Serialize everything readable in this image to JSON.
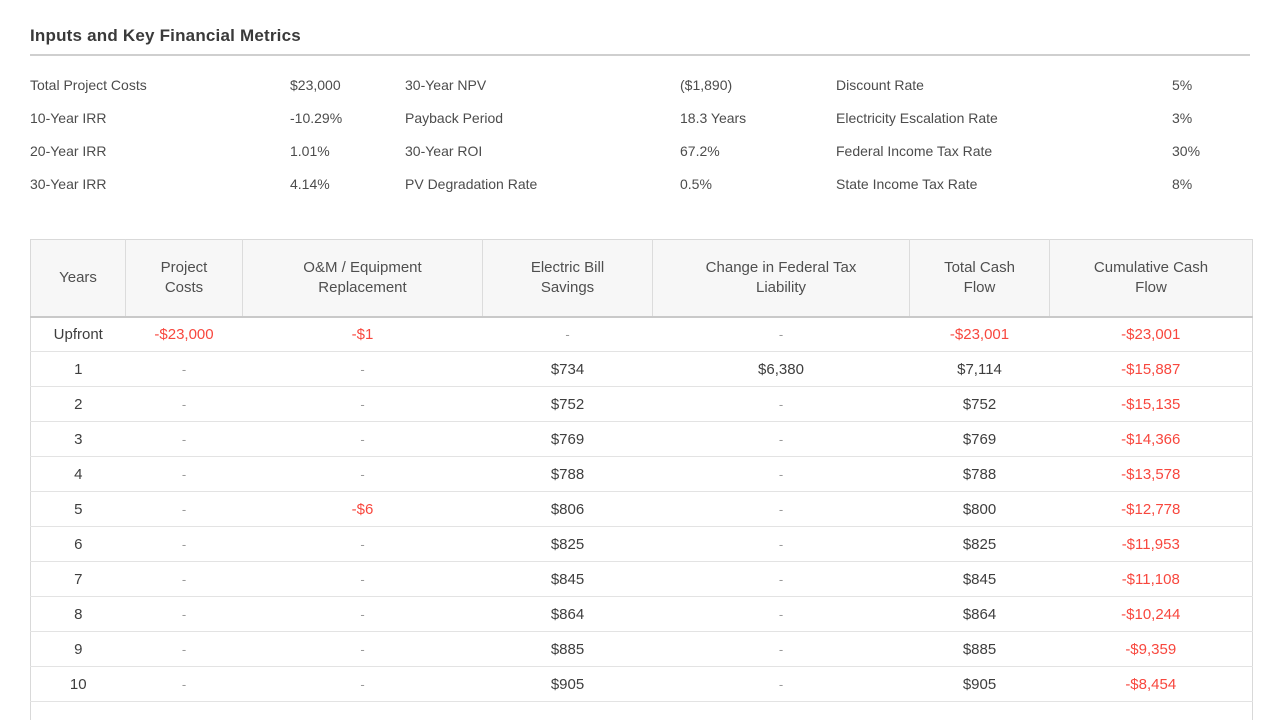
{
  "page": {
    "title": "Inputs and Key Financial Metrics"
  },
  "colors": {
    "negative_value": "#f8473e",
    "table_header_bg": "#f7f7f7"
  },
  "metrics": {
    "rows": [
      [
        {
          "label": "Total Project Costs",
          "value": "$23,000"
        },
        {
          "label": "30-Year NPV",
          "value": "($1,890)"
        },
        {
          "label": "Discount Rate",
          "value": "5%"
        }
      ],
      [
        {
          "label": "10-Year IRR",
          "value": "-10.29%"
        },
        {
          "label": "Payback Period",
          "value": "18.3 Years"
        },
        {
          "label": "Electricity Escalation Rate",
          "value": "3%"
        }
      ],
      [
        {
          "label": "20-Year IRR",
          "value": "1.01%"
        },
        {
          "label": "30-Year ROI",
          "value": "67.2%"
        },
        {
          "label": "Federal Income Tax Rate",
          "value": "30%"
        }
      ],
      [
        {
          "label": "30-Year IRR",
          "value": "4.14%"
        },
        {
          "label": "PV Degradation Rate",
          "value": "0.5%"
        },
        {
          "label": "State Income Tax Rate",
          "value": "8%"
        }
      ]
    ]
  },
  "table": {
    "columns": [
      [
        "Years"
      ],
      [
        "Project",
        "Costs"
      ],
      [
        "O&M / Equipment",
        "Replacement"
      ],
      [
        "Electric Bill",
        "Savings"
      ],
      [
        "Change in Federal Tax",
        "Liability"
      ],
      [
        "Total Cash",
        "Flow"
      ],
      [
        "Cumulative Cash",
        "Flow"
      ]
    ],
    "rows": [
      {
        "year": "Upfront",
        "cells": [
          {
            "v": "-$23,000",
            "neg": true
          },
          {
            "v": "-$1",
            "neg": true
          },
          {
            "v": "-"
          },
          {
            "v": "-"
          },
          {
            "v": "-$23,001",
            "neg": true
          },
          {
            "v": "-$23,001",
            "neg": true
          }
        ]
      },
      {
        "year": "1",
        "cells": [
          {
            "v": "-"
          },
          {
            "v": "-"
          },
          {
            "v": "$734"
          },
          {
            "v": "$6,380"
          },
          {
            "v": "$7,114"
          },
          {
            "v": "-$15,887",
            "neg": true
          }
        ]
      },
      {
        "year": "2",
        "cells": [
          {
            "v": "-"
          },
          {
            "v": "-"
          },
          {
            "v": "$752"
          },
          {
            "v": "-"
          },
          {
            "v": "$752"
          },
          {
            "v": "-$15,135",
            "neg": true
          }
        ]
      },
      {
        "year": "3",
        "cells": [
          {
            "v": "-"
          },
          {
            "v": "-"
          },
          {
            "v": "$769"
          },
          {
            "v": "-"
          },
          {
            "v": "$769"
          },
          {
            "v": "-$14,366",
            "neg": true
          }
        ]
      },
      {
        "year": "4",
        "cells": [
          {
            "v": "-"
          },
          {
            "v": "-"
          },
          {
            "v": "$788"
          },
          {
            "v": "-"
          },
          {
            "v": "$788"
          },
          {
            "v": "-$13,578",
            "neg": true
          }
        ]
      },
      {
        "year": "5",
        "cells": [
          {
            "v": "-"
          },
          {
            "v": "-$6",
            "neg": true
          },
          {
            "v": "$806"
          },
          {
            "v": "-"
          },
          {
            "v": "$800"
          },
          {
            "v": "-$12,778",
            "neg": true
          }
        ]
      },
      {
        "year": "6",
        "cells": [
          {
            "v": "-"
          },
          {
            "v": "-"
          },
          {
            "v": "$825"
          },
          {
            "v": "-"
          },
          {
            "v": "$825"
          },
          {
            "v": "-$11,953",
            "neg": true
          }
        ]
      },
      {
        "year": "7",
        "cells": [
          {
            "v": "-"
          },
          {
            "v": "-"
          },
          {
            "v": "$845"
          },
          {
            "v": "-"
          },
          {
            "v": "$845"
          },
          {
            "v": "-$11,108",
            "neg": true
          }
        ]
      },
      {
        "year": "8",
        "cells": [
          {
            "v": "-"
          },
          {
            "v": "-"
          },
          {
            "v": "$864"
          },
          {
            "v": "-"
          },
          {
            "v": "$864"
          },
          {
            "v": "-$10,244",
            "neg": true
          }
        ]
      },
      {
        "year": "9",
        "cells": [
          {
            "v": "-"
          },
          {
            "v": "-"
          },
          {
            "v": "$885"
          },
          {
            "v": "-"
          },
          {
            "v": "$885"
          },
          {
            "v": "-$9,359",
            "neg": true
          }
        ]
      },
      {
        "year": "10",
        "cells": [
          {
            "v": "-"
          },
          {
            "v": "-"
          },
          {
            "v": "$905"
          },
          {
            "v": "-"
          },
          {
            "v": "$905"
          },
          {
            "v": "-$8,454",
            "neg": true
          }
        ]
      }
    ]
  }
}
